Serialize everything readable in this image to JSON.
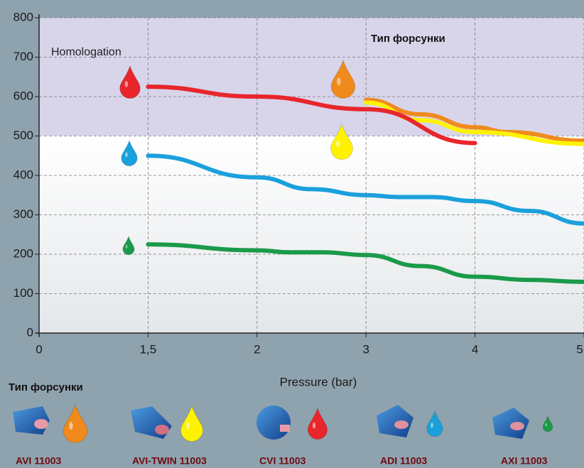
{
  "chart_data": {
    "type": "line",
    "annotations": [
      "Homologation",
      "Тип форсунки"
    ],
    "xlabel": "Pressure (bar)",
    "legend_title": "Тип форсунки",
    "xlim": [
      0,
      5
    ],
    "ylim": [
      0,
      800
    ],
    "xticks": [
      0,
      {
        "value": 1.5,
        "label": "1,5"
      },
      2,
      3,
      4,
      5
    ],
    "yticks": [
      0,
      100,
      200,
      300,
      400,
      500,
      600,
      700,
      800
    ],
    "grid": true,
    "series": [
      {
        "name": "AVI 11003",
        "color": "#f08a1c",
        "x": [
          3,
          3.5,
          4,
          4.3,
          5
        ],
        "values": [
          592,
          555,
          522,
          510,
          488
        ]
      },
      {
        "name": "AVI-TWIN 11003",
        "color": "#fff200",
        "x": [
          3,
          3.5,
          4,
          5
        ],
        "values": [
          585,
          540,
          510,
          480
        ]
      },
      {
        "name": "CVI 11003",
        "color": "#e8262b",
        "x": [
          1.5,
          2,
          3,
          4
        ],
        "values": [
          625,
          600,
          568,
          482
        ]
      },
      {
        "name": "ADI 11003",
        "color": "#1aa0dc",
        "x": [
          1.5,
          2,
          2.5,
          3,
          3.3,
          3.6,
          4,
          4.5,
          5
        ],
        "values": [
          450,
          395,
          365,
          350,
          345,
          345,
          335,
          310,
          278
        ]
      },
      {
        "name": "AXI 11003",
        "color": "#1a9a4a",
        "x": [
          1.5,
          2,
          2.3,
          2.6,
          3,
          3.5,
          4,
          4.5,
          5
        ],
        "values": [
          225,
          210,
          205,
          205,
          198,
          170,
          143,
          135,
          130
        ]
      }
    ]
  }
}
